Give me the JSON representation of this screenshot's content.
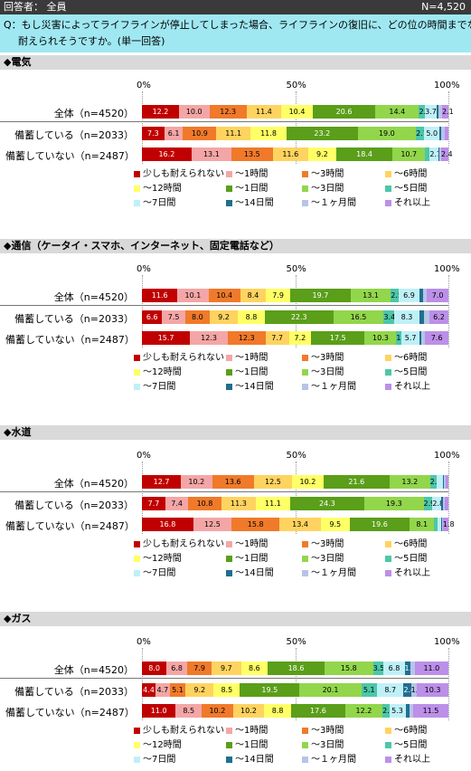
{
  "header": {
    "respondents": "回答者： 全員",
    "n_total": "N=4,520"
  },
  "question": {
    "line1": "Q：もし災害によってライフラインが停止してしまった場合、ライフラインの復旧に、どの位の時間までなら",
    "line2": "耐えられそうですか。(単一回答)"
  },
  "axis_labels": [
    "0%",
    "50%",
    "100%"
  ],
  "categories": [
    "少しも耐えられない",
    "～1時間",
    "～3時間",
    "～6時間",
    "～12時間",
    "～1日間",
    "～3日間",
    "～5日間",
    "～7日間",
    "～14日間",
    "～１ヶ月間",
    "それ以上"
  ],
  "colors": [
    "#c00000",
    "#f4a6a6",
    "#f07a2a",
    "#ffd35f",
    "#ffff66",
    "#5a9e19",
    "#92d64c",
    "#4cc7a8",
    "#bff0f7",
    "#1f6f8f",
    "#b7c4e8",
    "#bc8fe8"
  ],
  "text_colors": [
    "#ffffff",
    "#000000",
    "#000000",
    "#000000",
    "#000000",
    "#ffffff",
    "#000000",
    "#000000",
    "#000000",
    "#ffffff",
    "#000000",
    "#000000"
  ],
  "chart_data": [
    {
      "type": "bar",
      "title": "◆電気",
      "rows": [
        {
          "label": "全体（n=4520）",
          "values": [
            12.2,
            10.0,
            12.3,
            11.4,
            10.4,
            20.6,
            14.4,
            2.0,
            3.7,
            0.6,
            1.3,
            2.1
          ],
          "labels": [
            "12.2",
            "10.0",
            "12.3",
            "11.4",
            "10.4",
            "20.6",
            "14.4",
            "2.0",
            "3.7",
            "",
            "",
            "2.1"
          ]
        },
        {
          "label": "備蓄している（n=2033）",
          "values": [
            7.3,
            6.1,
            10.9,
            11.1,
            11.8,
            23.2,
            19.0,
            2.7,
            5.0,
            0.6,
            1.0,
            1.3
          ],
          "labels": [
            "7.3",
            "6.1",
            "10.9",
            "11.1",
            "11.8",
            "23.2",
            "19.0",
            "2.7",
            "5.0",
            "",
            "",
            ""
          ]
        },
        {
          "label": "備蓄していない（n=2487）",
          "values": [
            16.2,
            13.1,
            13.5,
            11.6,
            9.2,
            18.4,
            10.7,
            1.5,
            2.7,
            0.5,
            0.5,
            2.4
          ],
          "labels": [
            "16.2",
            "13.1",
            "13.5",
            "11.6",
            "9.2",
            "18.4",
            "10.7",
            "",
            "2.7",
            "",
            "",
            "2.4"
          ]
        }
      ]
    },
    {
      "type": "bar",
      "title": "◆通信（ケータイ・スマホ、インターネット、固定電話など）",
      "rows": [
        {
          "label": "全体（n=4520）",
          "values": [
            11.6,
            10.1,
            10.4,
            8.4,
            7.9,
            19.7,
            13.1,
            2.5,
            6.9,
            1.0,
            1.4,
            7.0
          ],
          "labels": [
            "11.6",
            "10.1",
            "10.4",
            "8.4",
            "7.9",
            "19.7",
            "13.1",
            "2.5",
            "6.9",
            "",
            "",
            "7.0"
          ]
        },
        {
          "label": "備蓄している（n=2033）",
          "values": [
            6.6,
            7.5,
            8.0,
            9.2,
            8.8,
            22.3,
            16.5,
            3.4,
            8.3,
            1.5,
            1.7,
            6.2
          ],
          "labels": [
            "6.6",
            "7.5",
            "8.0",
            "9.2",
            "8.8",
            "22.3",
            "16.5",
            "3.4",
            "8.3",
            "",
            "",
            "6.2"
          ]
        },
        {
          "label": "備蓄していない（n=2487）",
          "values": [
            15.7,
            12.3,
            12.3,
            7.7,
            7.2,
            17.5,
            10.3,
            1.8,
            5.7,
            0.7,
            1.2,
            7.6
          ],
          "labels": [
            "15.7",
            "12.3",
            "12.3",
            "7.7",
            "7.2",
            "17.5",
            "10.3",
            "1.8",
            "5.7",
            "",
            "",
            "7.6"
          ]
        }
      ]
    },
    {
      "type": "bar",
      "title": "◆水道",
      "rows": [
        {
          "label": "全体（n=4520）",
          "values": [
            12.7,
            10.2,
            13.6,
            12.5,
            10.2,
            21.6,
            13.2,
            2.1,
            2.0,
            0.4,
            0.5,
            1.0
          ],
          "labels": [
            "12.7",
            "10.2",
            "13.6",
            "12.5",
            "10.2",
            "21.6",
            "13.2",
            "2.1",
            "",
            "",
            "",
            ""
          ]
        },
        {
          "label": "備蓄している（n=2033）",
          "values": [
            7.7,
            7.4,
            10.8,
            11.3,
            11.1,
            24.3,
            19.3,
            2.9,
            2.8,
            0.5,
            0.7,
            1.2
          ],
          "labels": [
            "7.7",
            "7.4",
            "10.8",
            "11.3",
            "11.1",
            "24.3",
            "19.3",
            "2.9",
            "2.8",
            "",
            "",
            ""
          ]
        },
        {
          "label": "備蓄していない（n=2487）",
          "values": [
            16.8,
            12.5,
            15.8,
            13.4,
            9.5,
            19.6,
            8.1,
            1.0,
            1.3,
            0.3,
            0.2,
            1.8
          ],
          "labels": [
            "16.8",
            "12.5",
            "15.8",
            "13.4",
            "9.5",
            "19.6",
            "8.1",
            "",
            "",
            "",
            "",
            "1.8"
          ]
        }
      ]
    },
    {
      "type": "bar",
      "title": "◆ガス",
      "rows": [
        {
          "label": "全体（n=4520）",
          "values": [
            8.0,
            6.8,
            7.9,
            9.7,
            8.6,
            18.6,
            15.8,
            3.5,
            6.8,
            1.9,
            1.4,
            11.0
          ],
          "labels": [
            "8.0",
            "6.8",
            "7.9",
            "9.7",
            "8.6",
            "18.6",
            "15.8",
            "3.5",
            "6.8",
            "1.9",
            "",
            "11.0"
          ]
        },
        {
          "label": "備蓄している（n=2033）",
          "values": [
            4.4,
            4.7,
            5.1,
            9.2,
            8.5,
            19.5,
            20.1,
            5.1,
            8.7,
            2.4,
            1.9,
            10.3
          ],
          "labels": [
            "4.4",
            "4.7",
            "5.1",
            "9.2",
            "8.5",
            "19.5",
            "20.1",
            "5.1",
            "8.7",
            "2.4",
            "1.9",
            "10.3"
          ]
        },
        {
          "label": "備蓄していない（n=2487）",
          "values": [
            11.0,
            8.5,
            10.2,
            10.2,
            8.8,
            17.6,
            12.2,
            2.2,
            5.3,
            1.4,
            1.1,
            11.5
          ],
          "labels": [
            "11.0",
            "8.5",
            "10.2",
            "10.2",
            "8.8",
            "17.6",
            "12.2",
            "2.2",
            "5.3",
            "",
            "",
            "11.5"
          ]
        }
      ]
    }
  ]
}
